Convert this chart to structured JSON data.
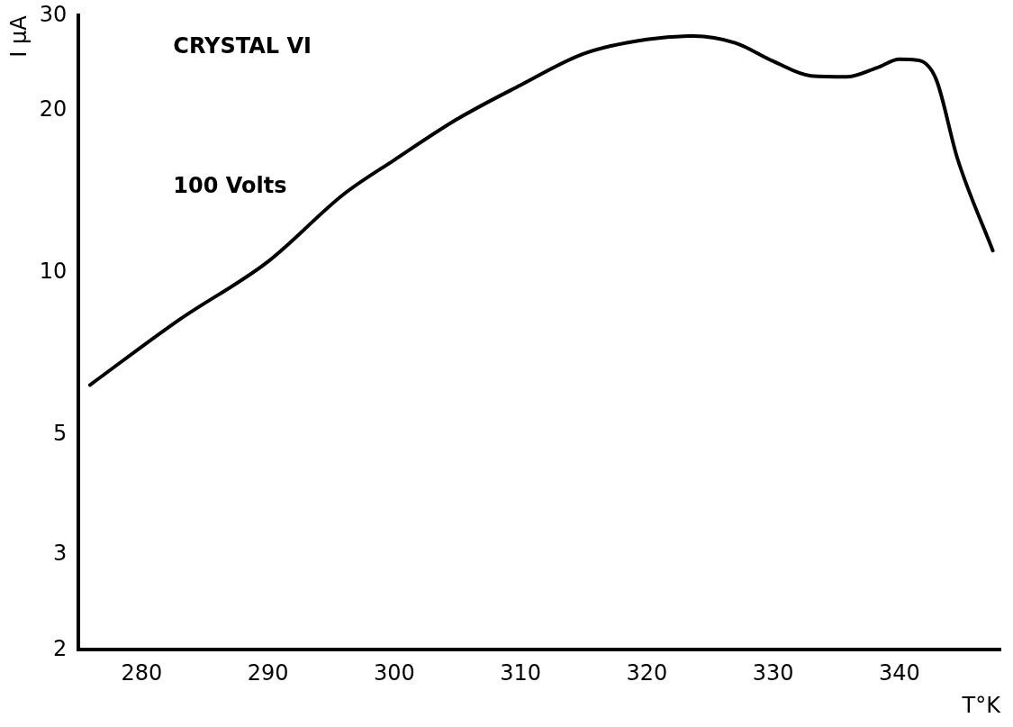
{
  "chart_data": {
    "type": "line",
    "xlabel": "T°K",
    "ylabel": "I μA",
    "annotations": [
      "CRYSTAL VI",
      "100 Volts"
    ],
    "x": [
      275.9,
      283,
      290,
      296,
      300,
      305,
      310,
      315,
      320,
      323.7,
      327,
      330,
      333,
      335.8,
      338.2,
      340,
      341.5,
      342.9,
      344.6,
      347.4
    ],
    "series": [
      {
        "color": "#000000",
        "values": [
          6.2,
          8.2,
          10.5,
          14.0,
          16.2,
          19.3,
          22.3,
          25.5,
          27.1,
          27.5,
          26.7,
          24.7,
          23.2,
          23.1,
          24.0,
          24.9,
          24.8,
          22.9,
          16.3,
          11.0
        ]
      }
    ],
    "xlim": [
      275,
      348
    ],
    "xticks": [
      280,
      290,
      300,
      310,
      320,
      330,
      340
    ],
    "ylim": [
      2,
      30
    ],
    "yticks": [
      2,
      3,
      5,
      10,
      20,
      30
    ],
    "log": "y",
    "grid": false,
    "legend": false,
    "marker": "none",
    "line_style": "solid"
  }
}
